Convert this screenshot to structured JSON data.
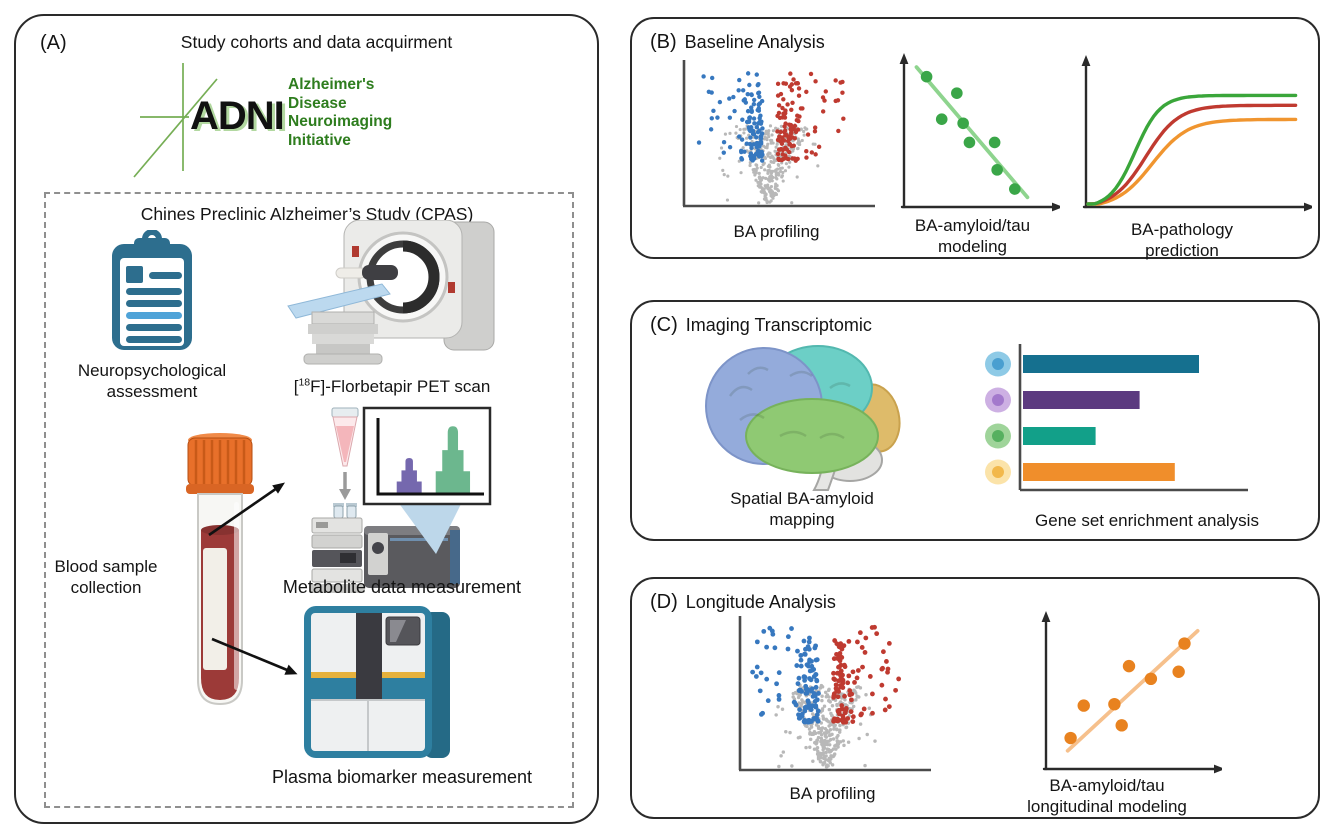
{
  "colors": {
    "panel_border": "#2a2a2a",
    "adni_green": "#2e7d1e",
    "clipboard_blue": "#2d6e8e",
    "clipboard_light_blue": "#4fa3d8",
    "blood_cap_orange": "#e8702a",
    "blood_red": "#9c3a38",
    "machine_teal": "#2e7fa0",
    "machine_yellow": "#e5b13c",
    "volcano_down_blue": "#3778bf",
    "volcano_up_red": "#bf3a30",
    "volcano_ns_gray": "#b8b8b8",
    "brain_frontal": "#94abdb",
    "brain_parietal": "#6ccfc6",
    "brain_temporal": "#8fc973",
    "brain_occipital": "#debb6a",
    "callout_blue": "#bdd7ea"
  },
  "panel_a": {
    "tag": "(A)",
    "title": "Study cohorts and data acquirment",
    "adni_logo": {
      "acronym": "ADNI",
      "lines": [
        "Alzheimer's",
        "Disease",
        "Neuroimaging",
        "Initiative"
      ]
    },
    "cpas_title": "Chines Preclinic Alzheimer’s Study  (CPAS)",
    "neuro_label": "Neuropsychological assessment",
    "pet_label": {
      "open": "[",
      "isotope": "18",
      "rest": "F]-Florbetapir PET scan"
    },
    "blood_label": "Blood sample collection",
    "metabolite_label": "Metabolite data measurement",
    "plasma_label": "Plasma biomarker measurement"
  },
  "panel_b": {
    "tag": "(B)",
    "title": "Baseline Analysis"
  },
  "panel_c": {
    "tag": "(C)",
    "title": "Imaging Transcriptomic"
  },
  "panel_d": {
    "tag": "(D)",
    "title": "Longitude Analysis"
  },
  "chart_data": [
    {
      "id": "b-volcano",
      "type": "scatter",
      "variant": "volcano",
      "panel": "B",
      "label_lines": [
        "BA profiling"
      ],
      "axes": "plain-L",
      "seed": 7,
      "dot_r": 2.2,
      "groups": [
        {
          "name": "significant-decreased",
          "color": "#3778bf",
          "n": 115
        },
        {
          "name": "significant-increased",
          "color": "#bf3a30",
          "n": 115
        },
        {
          "name": "non-significant",
          "color": "#b8b8b8",
          "n": 330
        }
      ]
    },
    {
      "id": "b-scatter",
      "type": "scatter",
      "panel": "B",
      "label_lines": [
        "BA-amyloid/tau",
        "modeling"
      ],
      "trend": "negative",
      "axes": "arrows",
      "dot_color": "#3aa648",
      "line_color": "#8ed48e",
      "dot_r": 5.8,
      "points": [
        [
          0.1,
          0.9
        ],
        [
          0.34,
          0.78
        ],
        [
          0.22,
          0.59
        ],
        [
          0.39,
          0.56
        ],
        [
          0.44,
          0.42
        ],
        [
          0.64,
          0.42
        ],
        [
          0.66,
          0.22
        ],
        [
          0.8,
          0.08
        ]
      ],
      "line": [
        [
          0.02,
          0.97
        ],
        [
          0.9,
          0.02
        ]
      ]
    },
    {
      "id": "b-sigmoid",
      "type": "line",
      "panel": "B",
      "label_lines": [
        "BA-pathology",
        "prediction"
      ],
      "axes": "arrows",
      "curves": [
        {
          "name": "green-curve",
          "color": "#3aa63a",
          "plateau": 0.8,
          "midpoint": 0.22,
          "steepness": 17
        },
        {
          "name": "red-curve",
          "color": "#c03a30",
          "plateau": 0.73,
          "midpoint": 0.27,
          "steepness": 13
        },
        {
          "name": "orange-curve",
          "color": "#f0952f",
          "plateau": 0.63,
          "midpoint": 0.3,
          "steepness": 12
        }
      ]
    },
    {
      "id": "c-gsea",
      "type": "bar",
      "panel": "C",
      "orientation": "horizontal",
      "label_lines": [
        "Gene set enrichment analysis"
      ],
      "bars": [
        {
          "value": 0.8,
          "color": "#15708f",
          "icon_outer": "#8ecae6",
          "icon_inner": "#4a9fd0"
        },
        {
          "value": 0.53,
          "color": "#5c3a80",
          "icon_outer": "#cdb0e3",
          "icon_inner": "#a379cc"
        },
        {
          "value": 0.33,
          "color": "#12a089",
          "icon_outer": "#9fd49a",
          "icon_inner": "#56b060"
        },
        {
          "value": 0.69,
          "color": "#f08e2b",
          "icon_outer": "#fbe3a9",
          "icon_inner": "#f2b84b"
        }
      ]
    },
    {
      "id": "d-volcano",
      "type": "scatter",
      "variant": "volcano",
      "panel": "D",
      "label_lines": [
        "BA profiling"
      ],
      "axes": "plain-L",
      "seed": 13,
      "dot_r": 2.4,
      "groups": [
        {
          "name": "significant-decreased",
          "color": "#3778bf",
          "n": 120
        },
        {
          "name": "significant-increased",
          "color": "#bf3a30",
          "n": 120
        },
        {
          "name": "non-significant",
          "color": "#b8b8b8",
          "n": 340
        }
      ]
    },
    {
      "id": "d-scatter",
      "type": "scatter",
      "panel": "D",
      "label_lines": [
        "BA-amyloid/tau",
        "longitudinal modeling"
      ],
      "trend": "positive",
      "axes": "arrows",
      "dot_color": "#e8821f",
      "line_color": "#f6c08c",
      "dot_r": 6.2,
      "points": [
        [
          0.1,
          0.17
        ],
        [
          0.19,
          0.4
        ],
        [
          0.4,
          0.41
        ],
        [
          0.45,
          0.26
        ],
        [
          0.5,
          0.68
        ],
        [
          0.65,
          0.59
        ],
        [
          0.84,
          0.64
        ],
        [
          0.88,
          0.84
        ]
      ],
      "line": [
        [
          0.08,
          0.08
        ],
        [
          0.97,
          0.93
        ]
      ]
    },
    {
      "id": "a-chromatogram",
      "type": "area",
      "panel": "A",
      "label_lines": [],
      "peaks": [
        {
          "name": "purple-peak",
          "x": 0.3,
          "height": 0.48,
          "width": 0.24,
          "color": "#7568ae"
        },
        {
          "name": "green-peak",
          "x": 0.72,
          "height": 0.92,
          "width": 0.33,
          "color": "#6cb78e"
        }
      ]
    }
  ]
}
